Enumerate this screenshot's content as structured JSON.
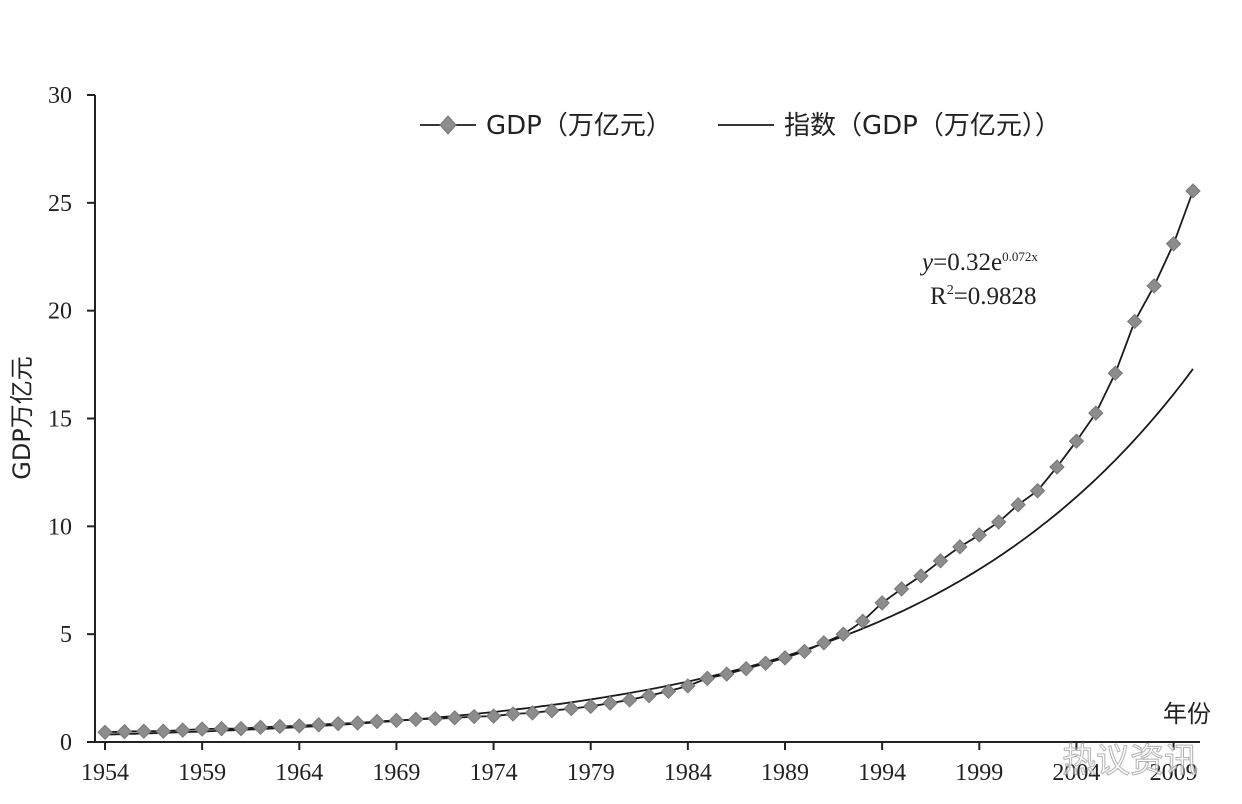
{
  "chart_data": {
    "type": "line",
    "title": "",
    "xlabel": "年份",
    "ylabel": "GDP万亿元",
    "xlim": [
      1954,
      2010
    ],
    "ylim": [
      0,
      30
    ],
    "x_ticks": [
      "1954",
      "1959",
      "1964",
      "1969",
      "1974",
      "1979",
      "1984",
      "1989",
      "1994",
      "1999",
      "2004",
      "2009"
    ],
    "y_ticks": [
      "0",
      "5",
      "10",
      "15",
      "20",
      "25",
      "30"
    ],
    "grid": false,
    "legend_position": "top",
    "legend": [
      "GDP（万亿元）",
      "指数（GDP（万亿元））"
    ],
    "series": [
      {
        "name": "GDP（万亿元）",
        "marker": "diamond",
        "color": "#8c8c8c",
        "x": [
          1954,
          1955,
          1956,
          1957,
          1958,
          1959,
          1960,
          1961,
          1962,
          1963,
          1964,
          1965,
          1966,
          1967,
          1968,
          1969,
          1970,
          1971,
          1972,
          1973,
          1974,
          1975,
          1976,
          1977,
          1978,
          1979,
          1980,
          1981,
          1982,
          1983,
          1984,
          1985,
          1986,
          1987,
          1988,
          1989,
          1990,
          1991,
          1992,
          1993,
          1994,
          1995,
          1996,
          1997,
          1998,
          1999,
          2000,
          2001,
          2002,
          2003,
          2004,
          2005,
          2006,
          2007,
          2008,
          2009,
          2010
        ],
        "y": [
          0.45,
          0.48,
          0.5,
          0.5,
          0.55,
          0.6,
          0.62,
          0.62,
          0.68,
          0.72,
          0.75,
          0.8,
          0.85,
          0.88,
          0.95,
          1.0,
          1.05,
          1.08,
          1.12,
          1.18,
          1.2,
          1.3,
          1.35,
          1.45,
          1.55,
          1.65,
          1.8,
          1.95,
          2.15,
          2.35,
          2.6,
          2.95,
          3.15,
          3.4,
          3.65,
          3.9,
          4.2,
          4.6,
          5.0,
          5.6,
          6.45,
          7.1,
          7.7,
          8.4,
          9.05,
          9.6,
          10.2,
          11.0,
          11.65,
          12.75,
          13.95,
          15.25,
          17.1,
          19.5,
          21.15,
          23.1,
          25.55
        ]
      },
      {
        "name": "指数（GDP（万亿元））",
        "color": "#1a1a1a",
        "type": "exponential fit",
        "a": 0.32,
        "b": 0.07
      }
    ],
    "annotations": {
      "equation_y": "y",
      "equation_rest": "=0.32e",
      "equation_exp": "0.072x",
      "r_squared_prefix": "R",
      "r_squared_power": "2",
      "r_squared_value": "=0.9828"
    }
  },
  "watermark": "热议资讯"
}
